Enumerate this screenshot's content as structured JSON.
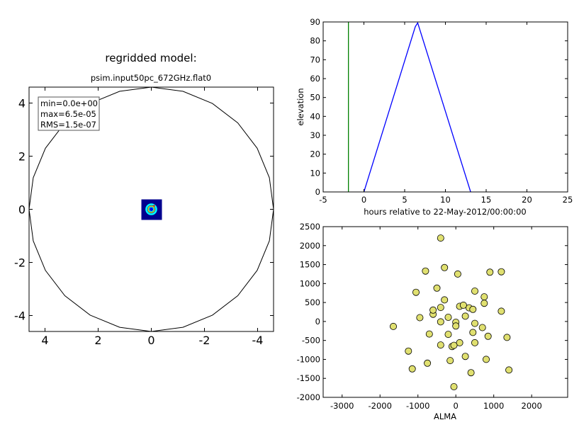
{
  "chart_data": [
    {
      "type": "image",
      "title": "regridded model:",
      "subtitle": "psim.input50pc_672GHz.flat0",
      "xlim": [
        4.6,
        -4.6
      ],
      "ylim": [
        -4.6,
        4.6
      ],
      "xticks": [
        "4",
        "2",
        "0",
        "-2",
        "-4"
      ],
      "yticks": [
        "4",
        "2",
        "0",
        "-2",
        "-4"
      ],
      "stats": [
        "min=0.0e+00",
        "max=6.5e-05",
        "RMS=1.5e-07"
      ],
      "outline_vertices": 24,
      "outline_radius": 4.6,
      "source_colormap": [
        "#00008f",
        "#0000ff",
        "#00ffff",
        "#ffff00",
        "#ff0000"
      ]
    },
    {
      "type": "line",
      "xlabel": "hours relative to 22-May-2012/00:00:00",
      "ylabel": "elevation",
      "xlim": [
        -5,
        25
      ],
      "ylim": [
        0,
        90
      ],
      "xticks": [
        "-5",
        "0",
        "5",
        "10",
        "15",
        "20",
        "25"
      ],
      "yticks": [
        "0",
        "10",
        "20",
        "30",
        "40",
        "50",
        "60",
        "70",
        "80",
        "90"
      ],
      "series": [
        {
          "color": "#0000ff",
          "x": [
            0,
            6.3,
            6.6,
            13.1
          ],
          "y": [
            0,
            87.5,
            89.5,
            0
          ]
        }
      ],
      "vline": {
        "x": -1.9,
        "color": "#008000"
      }
    },
    {
      "type": "scatter",
      "xlabel": "ALMA",
      "xlim": [
        -3500,
        2950
      ],
      "ylim": [
        -2000,
        2500
      ],
      "xticks": [
        "-3000",
        "-2000",
        "-1000",
        "0",
        "1000",
        "2000"
      ],
      "yticks": [
        "2500",
        "2000",
        "1500",
        "1000",
        "500",
        "0",
        "-500",
        "-1000",
        "-1500",
        "-2000"
      ],
      "marker_color": "#e0e070",
      "x": [
        -400,
        -800,
        1200,
        -1050,
        -300,
        50,
        500,
        750,
        1200,
        -500,
        -400,
        100,
        350,
        -300,
        200,
        450,
        900,
        750,
        -200,
        -600,
        -600,
        -950,
        -400,
        0,
        250,
        500,
        0,
        700,
        -1650,
        -700,
        -200,
        850,
        450,
        -1250,
        -400,
        100,
        -100,
        -50,
        250,
        500,
        1350,
        -1150,
        -750,
        -150,
        800,
        400,
        1400,
        -50
      ],
      "y": [
        2200,
        1330,
        1310,
        770,
        1420,
        1250,
        800,
        650,
        270,
        880,
        370,
        400,
        360,
        570,
        430,
        320,
        1300,
        480,
        110,
        190,
        300,
        100,
        -10,
        -20,
        140,
        -50,
        -120,
        -160,
        -130,
        -330,
        -340,
        -390,
        -290,
        -780,
        -620,
        -560,
        -660,
        -630,
        -920,
        -560,
        -420,
        -1250,
        -1100,
        -1030,
        -1000,
        -1350,
        -1280,
        -1720
      ]
    }
  ]
}
